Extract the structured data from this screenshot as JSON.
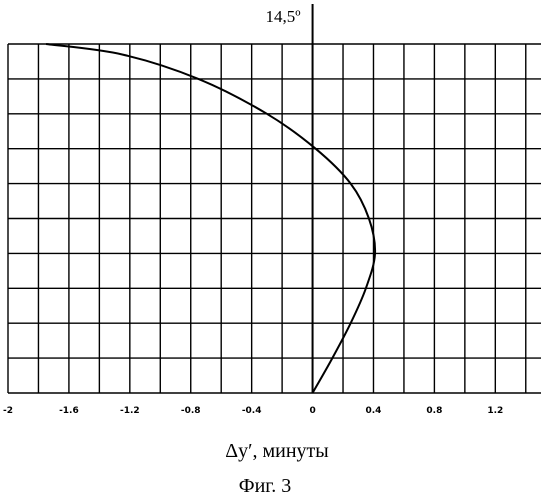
{
  "chart_data": {
    "type": "line",
    "title": "",
    "top_annotation": "14,5º",
    "xlabel": "Δy′, минуты",
    "caption": "Фиг. 3",
    "xlim": [
      -2,
      1.5
    ],
    "ylim": [
      0,
      10
    ],
    "x_ticks": [
      -2,
      -1.6,
      -1.2,
      -0.8,
      -0.4,
      0,
      0.4,
      0.8,
      1.2
    ],
    "x_tick_labels": [
      "-2",
      "-1.6",
      "-1.2",
      "-0.8",
      "-0.4",
      "0",
      "0.4",
      "0.8",
      "1.2"
    ],
    "x_grid_step": 0.2,
    "y_grid_step": 1,
    "grid": true,
    "series": [
      {
        "x": [
          0,
          0.13,
          0.25,
          0.35,
          0.41,
          0.37,
          0.25,
          0.02,
          -0.3,
          -0.75,
          -1.25,
          -1.75
        ],
        "y": [
          0,
          1,
          2,
          3,
          4,
          5,
          6,
          7,
          8,
          9,
          9.7,
          10
        ],
        "color": "#000000"
      }
    ]
  }
}
